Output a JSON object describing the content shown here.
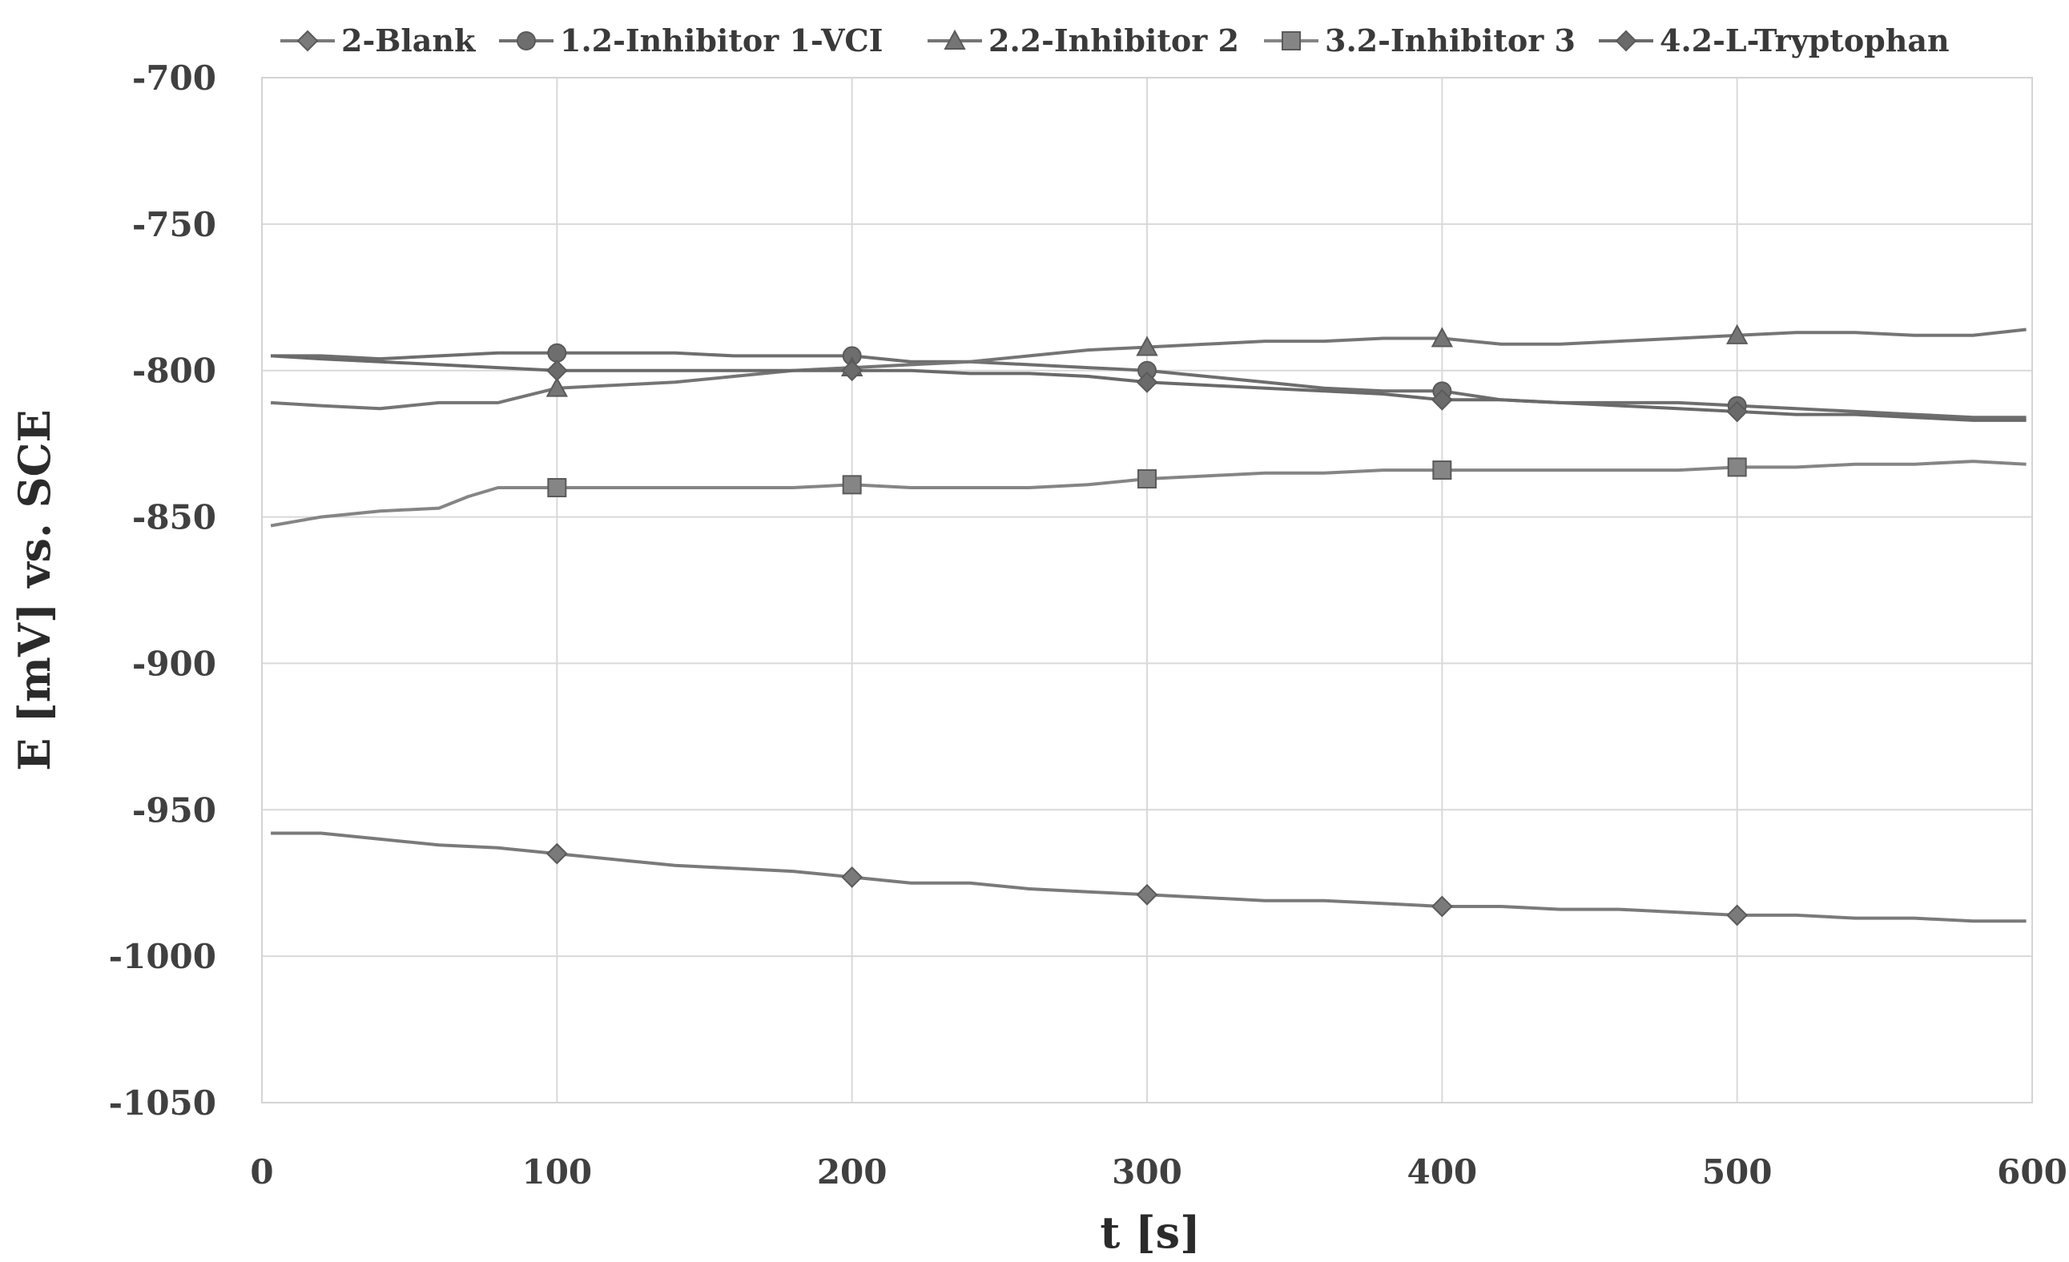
{
  "chart_data": {
    "type": "line",
    "title": "",
    "xlabel": "t [s]",
    "ylabel": "E [mV] vs. SCE",
    "xlim": [
      0,
      600
    ],
    "ylim": [
      -1050,
      -700
    ],
    "xticks": [
      0,
      100,
      200,
      300,
      400,
      500,
      600
    ],
    "yticks": [
      -700,
      -750,
      -800,
      -850,
      -900,
      -950,
      -1000,
      -1050
    ],
    "xtick_labels": [
      "0",
      "100",
      "200",
      "300",
      "400",
      "500",
      "600"
    ],
    "ytick_labels": [
      "-700",
      "-750",
      "-800",
      "-850",
      "-900",
      "-950",
      "-1000",
      "-1050"
    ],
    "grid": true,
    "legend_position": "top",
    "series": [
      {
        "name": "2-Blank",
        "marker": "diamond",
        "color": "#7a7a7a",
        "points": [
          [
            3,
            -958
          ],
          [
            20,
            -958
          ],
          [
            40,
            -960
          ],
          [
            60,
            -962
          ],
          [
            80,
            -963
          ],
          [
            100,
            -965
          ],
          [
            120,
            -967
          ],
          [
            140,
            -969
          ],
          [
            160,
            -970
          ],
          [
            180,
            -971
          ],
          [
            200,
            -973
          ],
          [
            220,
            -975
          ],
          [
            240,
            -975
          ],
          [
            260,
            -977
          ],
          [
            280,
            -978
          ],
          [
            300,
            -979
          ],
          [
            320,
            -980
          ],
          [
            340,
            -981
          ],
          [
            360,
            -981
          ],
          [
            380,
            -982
          ],
          [
            400,
            -983
          ],
          [
            420,
            -983
          ],
          [
            440,
            -984
          ],
          [
            460,
            -984
          ],
          [
            480,
            -985
          ],
          [
            500,
            -986
          ],
          [
            520,
            -986
          ],
          [
            540,
            -987
          ],
          [
            560,
            -987
          ],
          [
            580,
            -988
          ],
          [
            598,
            -988
          ]
        ],
        "markers": [
          [
            100,
            -965
          ],
          [
            200,
            -973
          ],
          [
            300,
            -979
          ],
          [
            400,
            -983
          ],
          [
            500,
            -986
          ]
        ]
      },
      {
        "name": "1.2-Inhibitor 1-VCI",
        "marker": "circle",
        "color": "#6e6e6e",
        "points": [
          [
            3,
            -795
          ],
          [
            20,
            -795
          ],
          [
            40,
            -796
          ],
          [
            60,
            -795
          ],
          [
            80,
            -794
          ],
          [
            100,
            -794
          ],
          [
            120,
            -794
          ],
          [
            140,
            -794
          ],
          [
            160,
            -795
          ],
          [
            180,
            -795
          ],
          [
            200,
            -795
          ],
          [
            220,
            -797
          ],
          [
            240,
            -797
          ],
          [
            260,
            -798
          ],
          [
            280,
            -799
          ],
          [
            300,
            -800
          ],
          [
            320,
            -802
          ],
          [
            340,
            -804
          ],
          [
            360,
            -806
          ],
          [
            380,
            -807
          ],
          [
            400,
            -807
          ],
          [
            420,
            -810
          ],
          [
            440,
            -811
          ],
          [
            460,
            -811
          ],
          [
            480,
            -811
          ],
          [
            500,
            -812
          ],
          [
            520,
            -813
          ],
          [
            540,
            -814
          ],
          [
            560,
            -815
          ],
          [
            580,
            -816
          ],
          [
            598,
            -816
          ]
        ],
        "markers": [
          [
            100,
            -794
          ],
          [
            200,
            -795
          ],
          [
            300,
            -800
          ],
          [
            400,
            -807
          ],
          [
            500,
            -812
          ]
        ]
      },
      {
        "name": "2.2-Inhibitor 2",
        "marker": "triangle",
        "color": "#757575",
        "points": [
          [
            3,
            -811
          ],
          [
            20,
            -812
          ],
          [
            40,
            -813
          ],
          [
            60,
            -811
          ],
          [
            80,
            -811
          ],
          [
            100,
            -806
          ],
          [
            120,
            -805
          ],
          [
            140,
            -804
          ],
          [
            160,
            -802
          ],
          [
            180,
            -800
          ],
          [
            200,
            -799
          ],
          [
            220,
            -798
          ],
          [
            240,
            -797
          ],
          [
            260,
            -795
          ],
          [
            280,
            -793
          ],
          [
            300,
            -792
          ],
          [
            320,
            -791
          ],
          [
            340,
            -790
          ],
          [
            360,
            -790
          ],
          [
            380,
            -789
          ],
          [
            400,
            -789
          ],
          [
            420,
            -791
          ],
          [
            440,
            -791
          ],
          [
            460,
            -790
          ],
          [
            480,
            -789
          ],
          [
            500,
            -788
          ],
          [
            520,
            -787
          ],
          [
            540,
            -787
          ],
          [
            560,
            -788
          ],
          [
            580,
            -788
          ],
          [
            598,
            -786
          ]
        ],
        "markers": [
          [
            100,
            -806
          ],
          [
            200,
            -799
          ],
          [
            300,
            -792
          ],
          [
            400,
            -789
          ],
          [
            500,
            -788
          ]
        ]
      },
      {
        "name": "3.2-Inhibitor 3",
        "marker": "square",
        "color": "#858585",
        "points": [
          [
            3,
            -853
          ],
          [
            20,
            -850
          ],
          [
            40,
            -848
          ],
          [
            60,
            -847
          ],
          [
            70,
            -843
          ],
          [
            80,
            -840
          ],
          [
            100,
            -840
          ],
          [
            120,
            -840
          ],
          [
            140,
            -840
          ],
          [
            160,
            -840
          ],
          [
            180,
            -840
          ],
          [
            200,
            -839
          ],
          [
            220,
            -840
          ],
          [
            240,
            -840
          ],
          [
            260,
            -840
          ],
          [
            280,
            -839
          ],
          [
            300,
            -837
          ],
          [
            320,
            -836
          ],
          [
            340,
            -835
          ],
          [
            360,
            -835
          ],
          [
            380,
            -834
          ],
          [
            400,
            -834
          ],
          [
            420,
            -834
          ],
          [
            440,
            -834
          ],
          [
            460,
            -834
          ],
          [
            480,
            -834
          ],
          [
            500,
            -833
          ],
          [
            520,
            -833
          ],
          [
            540,
            -832
          ],
          [
            560,
            -832
          ],
          [
            580,
            -831
          ],
          [
            598,
            -832
          ]
        ],
        "markers": [
          [
            100,
            -840
          ],
          [
            200,
            -839
          ],
          [
            300,
            -837
          ],
          [
            400,
            -834
          ],
          [
            500,
            -833
          ]
        ]
      },
      {
        "name": "4.2-L-Tryptophan",
        "marker": "diamond",
        "color": "#6a6a6a",
        "points": [
          [
            3,
            -795
          ],
          [
            20,
            -796
          ],
          [
            40,
            -797
          ],
          [
            60,
            -798
          ],
          [
            80,
            -799
          ],
          [
            100,
            -800
          ],
          [
            120,
            -800
          ],
          [
            140,
            -800
          ],
          [
            160,
            -800
          ],
          [
            180,
            -800
          ],
          [
            200,
            -800
          ],
          [
            220,
            -800
          ],
          [
            240,
            -801
          ],
          [
            260,
            -801
          ],
          [
            280,
            -802
          ],
          [
            300,
            -804
          ],
          [
            320,
            -805
          ],
          [
            340,
            -806
          ],
          [
            360,
            -807
          ],
          [
            380,
            -808
          ],
          [
            400,
            -810
          ],
          [
            420,
            -810
          ],
          [
            440,
            -811
          ],
          [
            460,
            -812
          ],
          [
            480,
            -813
          ],
          [
            500,
            -814
          ],
          [
            520,
            -815
          ],
          [
            540,
            -815
          ],
          [
            560,
            -816
          ],
          [
            580,
            -817
          ],
          [
            598,
            -817
          ]
        ],
        "markers": [
          [
            100,
            -800
          ],
          [
            200,
            -800
          ],
          [
            300,
            -804
          ],
          [
            400,
            -810
          ],
          [
            500,
            -814
          ]
        ]
      }
    ]
  }
}
